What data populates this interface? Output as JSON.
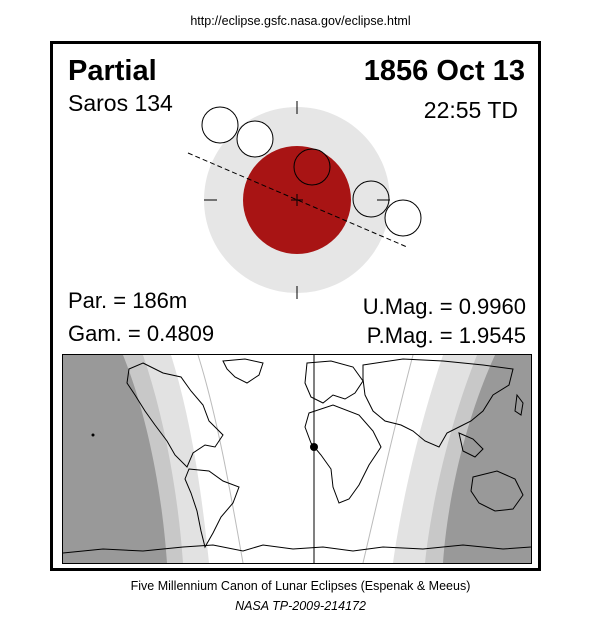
{
  "source_url": "http://eclipse.gsfc.nasa.gov/eclipse.html",
  "eclipse": {
    "type": "Partial",
    "date": "1856 Oct 13",
    "saros": "Saros 134",
    "time": "22:55 TD",
    "par": "Par. = 186m",
    "gam": "Gam. = 0.4809",
    "umag": "U.Mag. = 0.9960",
    "pmag": "P.Mag. = 1.9545"
  },
  "colors": {
    "penumbra": "#e6e6e6",
    "umbra": "#a81414",
    "night_dark": "#999999",
    "night_mid": "#c8c8c8",
    "night_light": "#e2e2e2",
    "day": "#ffffff"
  },
  "footer": {
    "line1": "Five Millennium Canon of Lunar Eclipses (Espenak & Meeus)",
    "line2": "NASA TP-2009-214172"
  }
}
